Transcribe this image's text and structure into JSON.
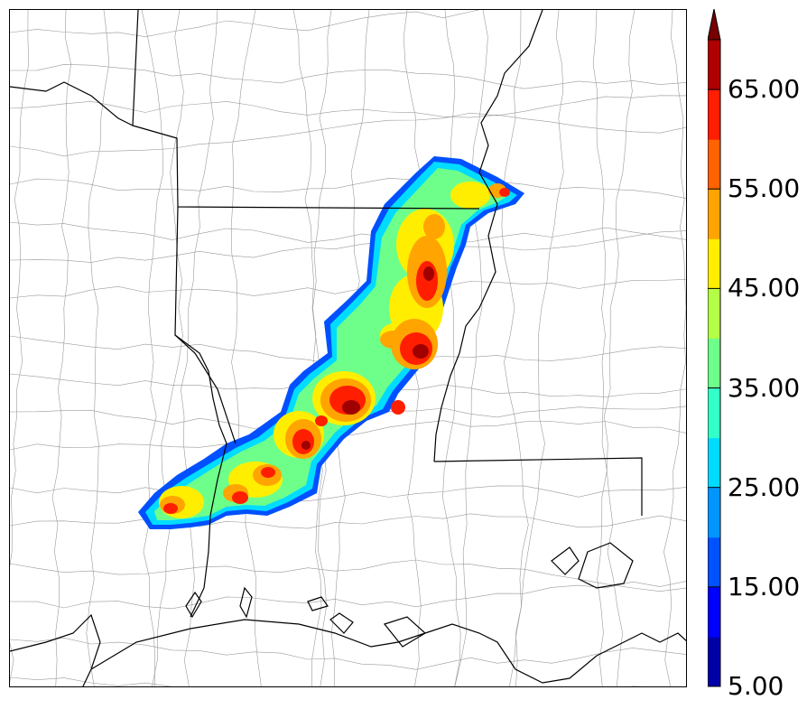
{
  "colorbar": {
    "tick_labels": [
      "65.00",
      "55.00",
      "45.00",
      "35.00",
      "25.00",
      "15.00",
      "5.00"
    ],
    "tick_values": [
      65,
      55,
      45,
      35,
      25,
      15,
      5
    ],
    "min": 5,
    "max": 70,
    "step": 5,
    "extend": "max",
    "colors": [
      "#0000a8",
      "#0000ff",
      "#0052ff",
      "#0096ff",
      "#00dcff",
      "#33ffc8",
      "#6eff8a",
      "#b4ff46",
      "#ffee00",
      "#ffa400",
      "#ff6200",
      "#ff1e00",
      "#b00000",
      "#780000"
    ]
  },
  "map": {
    "field_colors": {
      "edge": "#0050ff",
      "low": "#00dcff",
      "mid": "#6eff8a",
      "yellow": "#ffee00",
      "orange": "#ffa400",
      "red": "#ff1e00",
      "dark": "#a00000"
    },
    "boundary_color": "#000000",
    "county_color": "#9a9a9a"
  }
}
